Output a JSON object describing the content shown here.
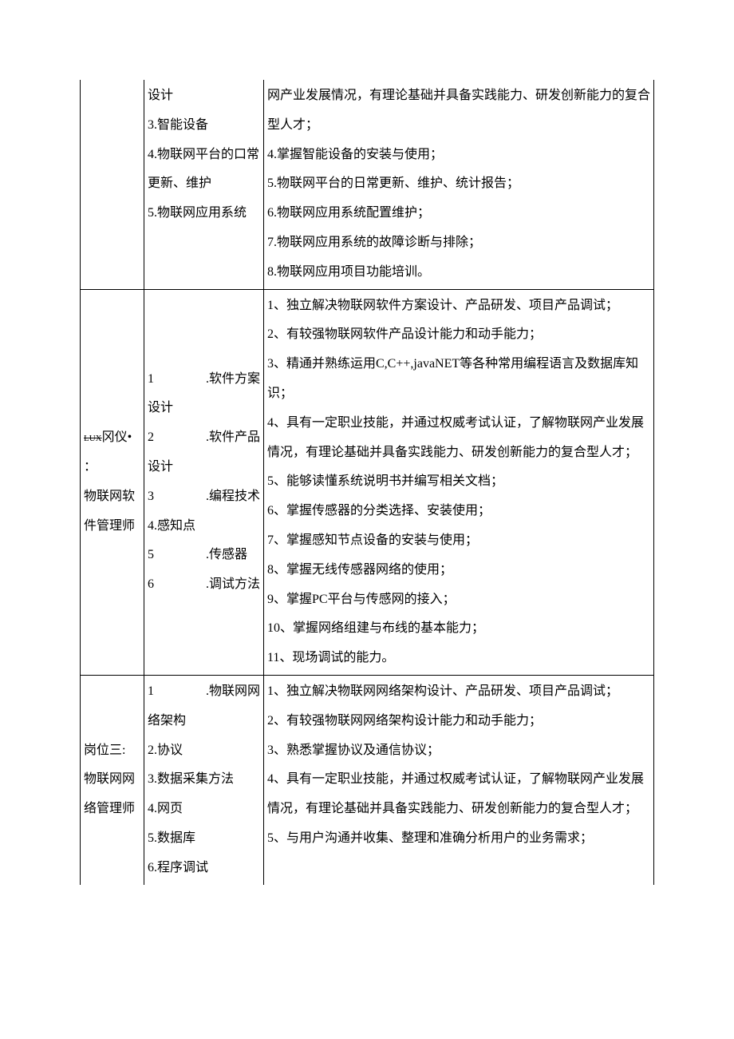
{
  "row1": {
    "col1": "",
    "col2": [
      "设计",
      "3.智能设备",
      "4.物联网平台的口常更新、维护",
      "5.物联网应用系统"
    ],
    "col3": [
      "网产业发展情况，有理论基础并具备实践能力、研发创新能力的复合型人才；",
      "4.掌握智能设备的安装与使用；",
      "5.物联网平台的日常更新、维护、统计报告；",
      "6.物联网应用系统配置维护；",
      "7.物联网应用系统的故障诊断与排除；",
      "8.物联网应用项目功能培训。"
    ]
  },
  "row2": {
    "col1_prefix": "冈仪•",
    "col1_lines": [
      "：",
      "物联网软件管理师"
    ],
    "col2_items": [
      {
        "n": "1",
        "t": ".软件方案设计"
      },
      {
        "n": "2",
        "t": ".软件产品设计"
      },
      {
        "n": "3",
        "t": ".编程技术"
      },
      {
        "n": "",
        "t": "4.感知点"
      },
      {
        "n": "5",
        "t": ".传感器"
      },
      {
        "n": "6",
        "t": ".调试方法"
      }
    ],
    "col3": [
      "1、独立解决物联网软件方案设计、产品研发、项目产品调试；",
      "2、有较强物联网软件产品设计能力和动手能力；",
      "3、精通并熟练运用C,C++,javaNET等各种常用编程语言及数据库知识；",
      "4、具有一定职业技能，并通过权威考试认证，了解物联网产业发展情况，有理论基础并具备实践能力、研发创新能力的复合型人才；",
      "5、能够读懂系统说明书并编写相关文档；",
      "6、掌握传感器的分类选择、安装使用；",
      "7、掌握感知节点设备的安装与使用；",
      "8、掌握无线传感器网络的使用；",
      "9、掌握PC平台与传感网的接入；",
      "10、掌握网络组建与布线的基本能力；",
      "11、现场调试的能力。"
    ]
  },
  "row3": {
    "col1": [
      "岗位三:",
      "物联网网络管理师"
    ],
    "col2_first": {
      "n": "1",
      "t": ".物联网网络架构"
    },
    "col2_rest": [
      "2.协议",
      "3.数据采集方法",
      "4.网页",
      "5.数据库",
      "6.程序调试"
    ],
    "col3": [
      "1、独立解决物联网网络架构设计、产品研发、项目产品调试；",
      "2、有较强物联网网络架构设计能力和动手能力；",
      "3、熟悉掌握协议及通信协议；",
      "4、具有一定职业技能，并通过权威考试认证，了解物联网产业发展情况，有理论基础并具备实践能力、研发创新能力的复合型人才；",
      "5、与用户沟通并收集、整理和准确分析用户的业务需求；"
    ]
  }
}
